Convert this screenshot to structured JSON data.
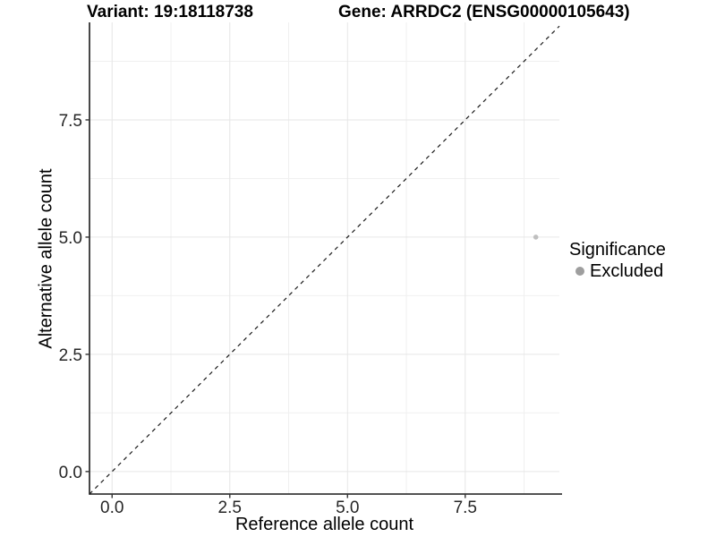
{
  "chart_data": {
    "type": "scatter",
    "titles": {
      "variant": "Variant: 19:18118738",
      "gene": "Gene: ARRDC2 (ENSG00000105643)"
    },
    "xlabel": "Reference allele count",
    "ylabel": "Alternative allele count",
    "xlim": [
      -0.48,
      9.5
    ],
    "ylim": [
      -0.48,
      9.58
    ],
    "x_ticks": [
      0,
      2.5,
      5,
      7.5
    ],
    "x_tick_labels": [
      "0.0",
      "2.5",
      "5.0",
      "7.5"
    ],
    "y_ticks": [
      0,
      2.5,
      5,
      7.5
    ],
    "y_tick_labels": [
      "0.0",
      "2.5",
      "5.0",
      "7.5"
    ],
    "x_minor_ticks": [
      1.25,
      3.75,
      6.25,
      8.75
    ],
    "y_minor_ticks": [
      1.25,
      3.75,
      6.25,
      8.75
    ],
    "grid": true,
    "legend_position": "right-middle",
    "reference_line": {
      "type": "identity",
      "style": "dashed",
      "color": "#1a1a1a"
    },
    "series": [
      {
        "name": "Excluded",
        "x": [
          9
        ],
        "y": [
          5
        ],
        "color": "#bfbfbf",
        "point_radius": 2.8
      }
    ],
    "legend": {
      "title": "Significance",
      "items": [
        {
          "label": "Excluded",
          "color": "#9e9e9e"
        }
      ]
    }
  },
  "colors": {
    "background": "#ffffff",
    "grid_major": "#e6e6e6",
    "grid_minor": "#f0f0f0",
    "axis_line": "#1a1a1a",
    "tick_mark": "#333333",
    "tick_label": "#262626"
  }
}
